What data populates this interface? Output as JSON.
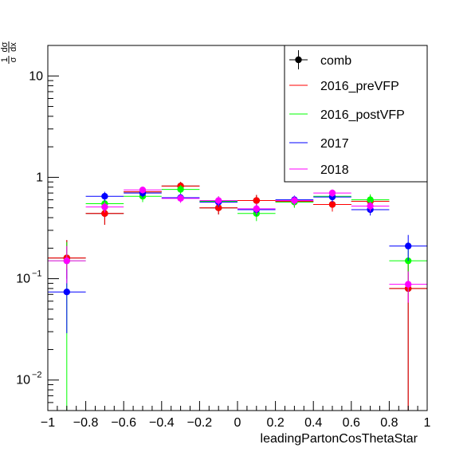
{
  "chart_data": {
    "type": "scatter",
    "title": "",
    "xlabel": "leadingPartonCosThetaStar",
    "ylabel_num": "1",
    "ylabel_den": "σ",
    "ylabel_dnum": "dσ",
    "ylabel_dden": "dx",
    "xlim": [
      -1,
      1
    ],
    "ylim": [
      0.005,
      20
    ],
    "yscale": "log",
    "x_ticks": [
      {
        "v": -1,
        "label": "−1"
      },
      {
        "v": -0.8,
        "label": "−0.8"
      },
      {
        "v": -0.6,
        "label": "−0.6"
      },
      {
        "v": -0.4,
        "label": "−0.4"
      },
      {
        "v": -0.2,
        "label": "−0.2"
      },
      {
        "v": 0,
        "label": "0"
      },
      {
        "v": 0.2,
        "label": "0.2"
      },
      {
        "v": 0.4,
        "label": "0.4"
      },
      {
        "v": 0.6,
        "label": "0.6"
      },
      {
        "v": 0.8,
        "label": "0.8"
      },
      {
        "v": 1,
        "label": "1"
      }
    ],
    "y_ticks": [
      {
        "v": 0.01,
        "base": "10",
        "exp": "−2"
      },
      {
        "v": 0.1,
        "base": "10",
        "exp": "−1"
      },
      {
        "v": 1,
        "base": "1",
        "exp": ""
      },
      {
        "v": 10,
        "base": "10",
        "exp": ""
      }
    ],
    "bin_edges": [
      -1,
      -0.8,
      -0.6,
      -0.4,
      -0.2,
      0,
      0.2,
      0.4,
      0.6,
      0.8,
      1
    ],
    "legend_position": "top-right",
    "series": [
      {
        "name": "comb",
        "color": "#000000",
        "y": [
          0.16,
          0.44,
          0.72,
          0.82,
          0.5,
          0.59,
          0.58,
          0.54,
          0.58,
          0.08
        ],
        "yerr_lo": [
          0.06,
          0.1,
          0.08,
          0.08,
          0.07,
          0.08,
          0.07,
          0.08,
          0.08,
          0.079
        ],
        "yerr_hi": [
          0.08,
          0.1,
          0.08,
          0.08,
          0.07,
          0.08,
          0.07,
          0.08,
          0.08,
          0.06
        ]
      },
      {
        "name": "2016_preVFP",
        "color": "#ff0000",
        "y": [
          0.16,
          0.44,
          0.72,
          0.82,
          0.5,
          0.59,
          0.58,
          0.54,
          0.58,
          0.08
        ],
        "yerr_lo": [
          0.06,
          0.1,
          0.08,
          0.08,
          0.07,
          0.08,
          0.07,
          0.08,
          0.08,
          0.079
        ],
        "yerr_hi": [
          0.08,
          0.1,
          0.08,
          0.08,
          0.07,
          0.08,
          0.07,
          0.08,
          0.08,
          0.06
        ]
      },
      {
        "name": "2016_postVFP",
        "color": "#00ff00",
        "y": [
          0.15,
          0.55,
          0.65,
          0.76,
          0.58,
          0.44,
          0.57,
          0.65,
          0.6,
          0.15
        ],
        "yerr_lo": [
          0.145,
          0.08,
          0.08,
          0.08,
          0.07,
          0.07,
          0.07,
          0.07,
          0.08,
          0.08
        ],
        "yerr_hi": [
          0.08,
          0.08,
          0.08,
          0.08,
          0.07,
          0.07,
          0.07,
          0.07,
          0.08,
          0.08
        ]
      },
      {
        "name": "2017",
        "color": "#0000ff",
        "y": [
          0.074,
          0.65,
          0.7,
          0.63,
          0.57,
          0.48,
          0.6,
          0.64,
          0.48,
          0.21
        ],
        "yerr_lo": [
          0.045,
          0.07,
          0.07,
          0.06,
          0.06,
          0.06,
          0.06,
          0.07,
          0.06,
          0.06
        ],
        "yerr_hi": [
          0.05,
          0.07,
          0.07,
          0.06,
          0.06,
          0.06,
          0.06,
          0.07,
          0.06,
          0.06
        ]
      },
      {
        "name": "2018",
        "color": "#ff00ff",
        "y": [
          0.15,
          0.51,
          0.75,
          0.62,
          0.59,
          0.49,
          0.59,
          0.7,
          0.52,
          0.088
        ],
        "yerr_lo": [
          0.06,
          0.06,
          0.06,
          0.06,
          0.06,
          0.06,
          0.06,
          0.06,
          0.06,
          0.03
        ],
        "yerr_hi": [
          0.06,
          0.06,
          0.06,
          0.06,
          0.06,
          0.06,
          0.06,
          0.06,
          0.06,
          0.03
        ]
      }
    ]
  }
}
